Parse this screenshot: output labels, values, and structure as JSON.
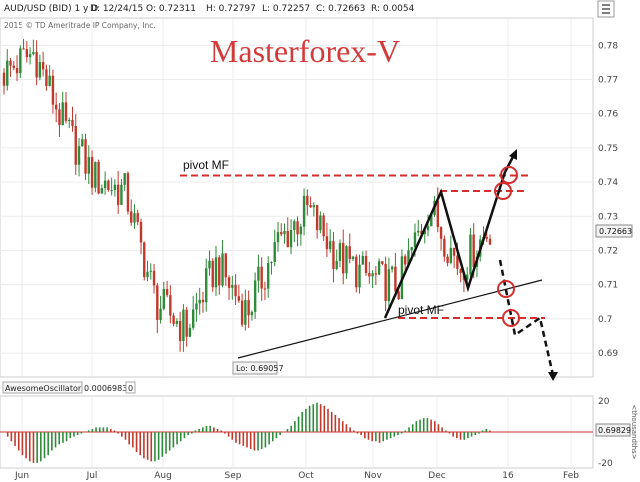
{
  "header": {
    "symbol": "AUD/USD (BID) 1 y D",
    "date": "D: 12/24/15",
    "open": "O: 0.72311",
    "high": "H: 0.72797",
    "low": "L: 0.72257",
    "close": "C: 0.72663",
    "range": "R: 0.0054",
    "copyright": "2015 © TD Ameritrade IP Company, Inc."
  },
  "watermark": "Masterforex-V",
  "annotations": {
    "pivot_top": "pivot MF",
    "pivot_bottom": "pivot MF",
    "low_label": "Lo: 0.69057"
  },
  "price_badge": "0.72663",
  "oscillator": {
    "name": "AwesomeOscillator",
    "value": "0.0006983",
    "extra": "0",
    "badge": "0.69829",
    "axis_unit": "<thousandths>",
    "ticks": [
      "20",
      "0",
      "-20"
    ]
  },
  "colors": {
    "up": "#2e8b3a",
    "down": "#c0392b",
    "annotation": "#d62d2d",
    "pen": "#111111",
    "watermark": "#d43a3a"
  },
  "chart_data": [
    {
      "type": "candlestick",
      "title": "AUD/USD (BID) 1 y D",
      "x_tick_labels": [
        "Jun",
        "Jul",
        "Aug",
        "Sep",
        "Oct",
        "Nov",
        "Dec",
        "16",
        "Feb"
      ],
      "y_tick_labels": [
        "0.78",
        "0.77",
        "0.76",
        "0.75",
        "0.74",
        "0.73",
        "0.72",
        "0.71",
        "0.7",
        "0.69"
      ],
      "ylim": [
        0.683,
        0.788
      ],
      "grid": true,
      "close_path": [
        {
          "month": "Jun",
          "close": 0.772
        },
        {
          "month": "Jun (mid)",
          "close": 0.778
        },
        {
          "month": "Jul",
          "close": 0.756
        },
        {
          "month": "Jul (late)",
          "close": 0.741
        },
        {
          "month": "Aug",
          "close": 0.737
        },
        {
          "month": "Aug (late)",
          "close": 0.705
        },
        {
          "month": "Sep",
          "close": 0.697
        },
        {
          "month": "Sep (mid)",
          "close": 0.716
        },
        {
          "month": "Sep (late)",
          "close": 0.702
        },
        {
          "month": "Oct",
          "close": 0.722
        },
        {
          "month": "Oct (mid)",
          "close": 0.732
        },
        {
          "month": "Oct (late)",
          "close": 0.718
        },
        {
          "month": "Nov",
          "close": 0.712
        },
        {
          "month": "Nov (mid)",
          "close": 0.71
        },
        {
          "month": "Dec",
          "close": 0.733
        },
        {
          "month": "Dec (mid)",
          "close": 0.715
        },
        {
          "month": "Dec (late)",
          "close": 0.7266
        }
      ],
      "lows": [
        {
          "label": "Lo",
          "value": 0.69057
        }
      ],
      "resistance_levels": [
        0.743,
        0.741,
        0.7385
      ],
      "support_level": 0.7015
    },
    {
      "type": "bar",
      "title": "AwesomeOscillator",
      "y_tick_labels": [
        "20",
        "0",
        "-20"
      ],
      "ylim": [
        -22,
        22
      ],
      "values": [
        0,
        -3,
        -6,
        -9,
        -12,
        -15,
        -17,
        -19,
        -20,
        -20,
        -19,
        -17,
        -15,
        -12,
        -10,
        -8,
        -7,
        -6,
        -4,
        -3,
        -2,
        -1,
        0,
        1,
        2,
        3,
        3,
        3,
        3,
        2,
        1,
        -1,
        -3,
        -5,
        -8,
        -10,
        -13,
        -15,
        -17,
        -18,
        -19,
        -19,
        -18,
        -16,
        -14,
        -12,
        -10,
        -8,
        -6,
        -4,
        -2,
        -1,
        1,
        2,
        3,
        4,
        4,
        3,
        2,
        1,
        -1,
        -3,
        -5,
        -7,
        -8,
        -9,
        -10,
        -11,
        -12,
        -12,
        -11,
        -10,
        -8,
        -6,
        -4,
        -2,
        0,
        2,
        4,
        7,
        10,
        13,
        15,
        17,
        18,
        19,
        18,
        17,
        15,
        13,
        11,
        9,
        7,
        5,
        3,
        1,
        -1,
        -2,
        -4,
        -5,
        -6,
        -6,
        -7,
        -6,
        -5,
        -4,
        -3,
        -2,
        -1,
        1,
        3,
        5,
        7,
        8,
        9,
        9,
        8,
        7,
        5,
        3,
        1,
        -1,
        -3,
        -4,
        -5,
        -5,
        -4,
        -3,
        -2,
        -1,
        1,
        2,
        1
      ]
    }
  ]
}
